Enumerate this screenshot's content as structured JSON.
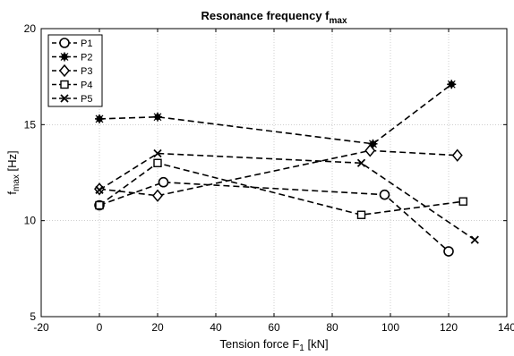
{
  "chart_data": {
    "type": "line",
    "title": {
      "main": "Resonance frequency f",
      "sub": "max"
    },
    "xlabel": {
      "main": "Tension force F",
      "sub": "1",
      "suffix": " [kN]"
    },
    "ylabel": {
      "main": "f",
      "sub": "max",
      "suffix": " [Hz]"
    },
    "xlim": [
      -20,
      140
    ],
    "ylim": [
      5,
      20
    ],
    "xticks": [
      -20,
      0,
      20,
      40,
      60,
      80,
      100,
      120,
      140
    ],
    "yticks": [
      5,
      10,
      15,
      20
    ],
    "grid": true,
    "legend_position": "top-left",
    "line_color": "#000000",
    "series": [
      {
        "name": "P1",
        "marker": "circle",
        "x": [
          0,
          22,
          98,
          120
        ],
        "y": [
          10.8,
          12.0,
          11.35,
          8.4
        ]
      },
      {
        "name": "P2",
        "marker": "filled-asterisk",
        "x": [
          0,
          20,
          94,
          121
        ],
        "y": [
          15.3,
          15.4,
          14.0,
          17.1
        ]
      },
      {
        "name": "P3",
        "marker": "diamond",
        "x": [
          0,
          20,
          93,
          123
        ],
        "y": [
          11.65,
          11.3,
          13.65,
          13.4
        ]
      },
      {
        "name": "P4",
        "marker": "square",
        "x": [
          0,
          20,
          90,
          125
        ],
        "y": [
          10.8,
          13.0,
          10.3,
          11.0
        ]
      },
      {
        "name": "P5",
        "marker": "x",
        "x": [
          0,
          20,
          90,
          129
        ],
        "y": [
          11.6,
          13.5,
          13.0,
          9.0
        ]
      }
    ]
  }
}
